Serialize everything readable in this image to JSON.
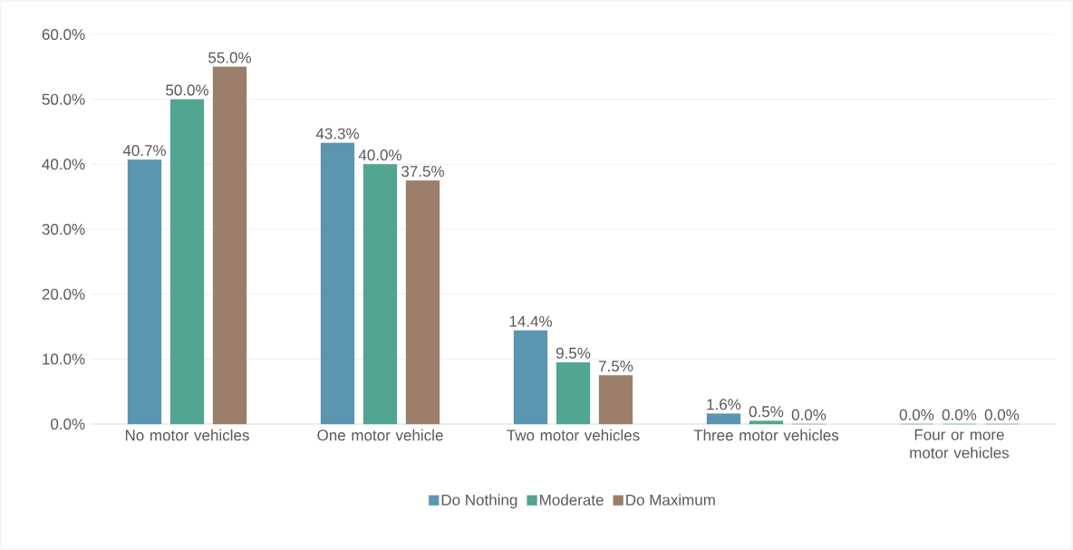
{
  "chart_data": {
    "type": "bar",
    "categories": [
      "No motor vehicles",
      "One motor vehicle",
      "Two motor vehicles",
      "Three motor vehicles",
      "Four or more motor vehicles"
    ],
    "series": [
      {
        "name": "Do Nothing",
        "color": "#5b96b0",
        "values": [
          40.7,
          43.3,
          14.4,
          1.6,
          0.0
        ],
        "value_labels": [
          "40.7%",
          "43.3%",
          "14.4%",
          "1.6%",
          "0.0%"
        ]
      },
      {
        "name": "Moderate",
        "color": "#52a591",
        "values": [
          50.0,
          40.0,
          9.5,
          0.5,
          0.0
        ],
        "value_labels": [
          "50.0%",
          "40.0%",
          "9.5%",
          "0.5%",
          "0.0%"
        ]
      },
      {
        "name": "Do Maximum",
        "color": "#9b7e6a",
        "values": [
          55.0,
          37.5,
          7.5,
          0.0,
          0.0
        ],
        "value_labels": [
          "55.0%",
          "37.5%",
          "7.5%",
          "0.0%",
          "0.0%"
        ]
      }
    ],
    "ylim": [
      0,
      60
    ],
    "yticks": [
      {
        "value": 0,
        "label": "0.0%"
      },
      {
        "value": 10,
        "label": "10.0%"
      },
      {
        "value": 20,
        "label": "20.0%"
      },
      {
        "value": 30,
        "label": "30.0%"
      },
      {
        "value": 40,
        "label": "40.0%"
      },
      {
        "value": 50,
        "label": "50.0%"
      },
      {
        "value": 60,
        "label": "60.0%"
      }
    ],
    "grid": "y",
    "legend": "bottom"
  }
}
